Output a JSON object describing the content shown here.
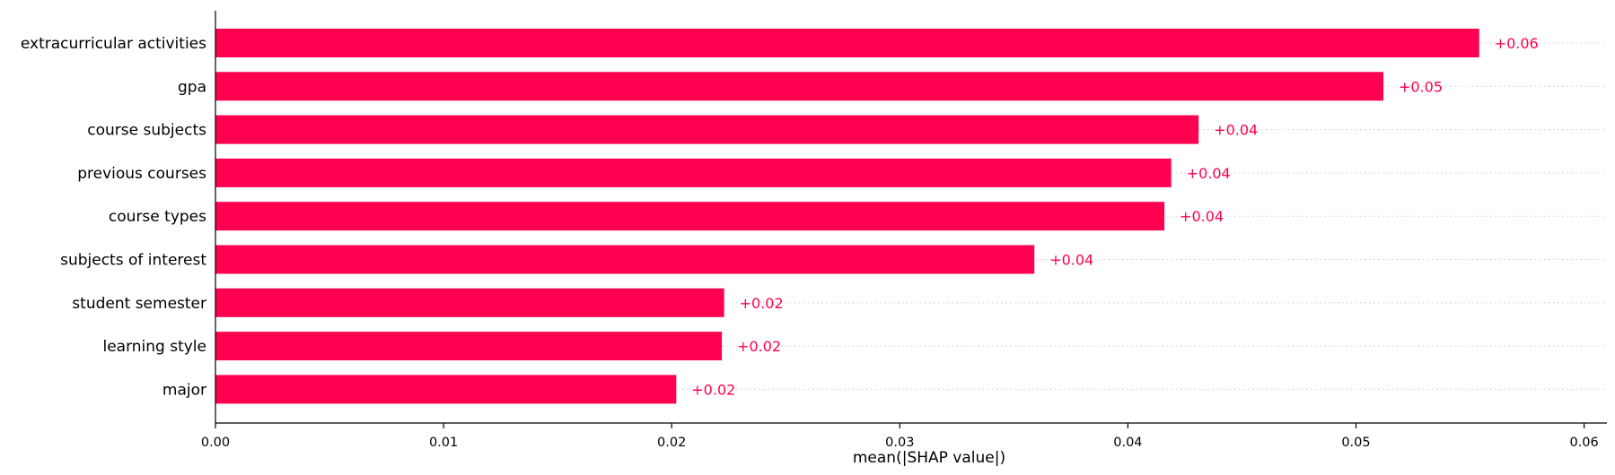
{
  "chart_data": {
    "type": "bar",
    "orientation": "horizontal",
    "categories": [
      "extracurricular activities",
      "gpa",
      "course subjects",
      "previous courses",
      "course types",
      "subjects of interest",
      "student semester",
      "learning style",
      "major"
    ],
    "values": [
      0.0554,
      0.0512,
      0.0431,
      0.0419,
      0.0416,
      0.0359,
      0.0223,
      0.0222,
      0.0202
    ],
    "value_labels": [
      "+0.06",
      "+0.05",
      "+0.04",
      "+0.04",
      "+0.04",
      "+0.04",
      "+0.02",
      "+0.02",
      "+0.02"
    ],
    "xlabel": "mean(|SHAP value|)",
    "ylabel": "",
    "xlim": [
      0,
      0.061
    ],
    "xticks": [
      0.0,
      0.01,
      0.02,
      0.03,
      0.04,
      0.05,
      0.06
    ],
    "xtick_labels": [
      "0.00",
      "0.01",
      "0.02",
      "0.03",
      "0.04",
      "0.05",
      "0.06"
    ],
    "bar_color": "#ff0051",
    "label_color": "#ff0051",
    "grid": "dotted horizontal guide lines",
    "legend": "none"
  }
}
